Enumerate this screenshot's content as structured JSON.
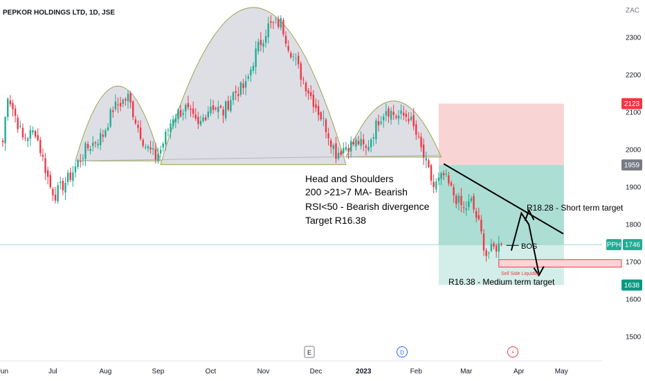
{
  "chart_data": {
    "type": "candlestick",
    "title": "PEPKOR HOLDINGS LTD, 1D, JSE",
    "currency": "ZAC",
    "ylim": [
      1440,
      2360
    ],
    "y_ticks": [
      1500,
      1600,
      1700,
      1800,
      1900,
      2000,
      2100,
      2200,
      2300
    ],
    "x_ticks": [
      {
        "label": "Jun",
        "x": 0
      },
      {
        "label": "Jul",
        "x": 20
      },
      {
        "label": "Aug",
        "x": 41
      },
      {
        "label": "Sep",
        "x": 62
      },
      {
        "label": "Oct",
        "x": 83
      },
      {
        "label": "Nov",
        "x": 104
      },
      {
        "label": "Dec",
        "x": 125
      },
      {
        "label": "2023",
        "x": 144,
        "bold": true
      },
      {
        "label": "Feb",
        "x": 165
      },
      {
        "label": "Mar",
        "x": 185
      },
      {
        "label": "Apr",
        "x": 206
      },
      {
        "label": "May",
        "x": 223
      }
    ],
    "anchors": [
      [
        0,
        2020
      ],
      [
        2,
        2150
      ],
      [
        8,
        2030
      ],
      [
        13,
        2050
      ],
      [
        19,
        1900
      ],
      [
        21,
        1880
      ],
      [
        27,
        1930
      ],
      [
        33,
        2000
      ],
      [
        40,
        2040
      ],
      [
        44,
        2110
      ],
      [
        50,
        2140
      ],
      [
        54,
        2060
      ],
      [
        57,
        2010
      ],
      [
        61,
        1980
      ],
      [
        63,
        2000
      ],
      [
        68,
        2090
      ],
      [
        73,
        2110
      ],
      [
        78,
        2060
      ],
      [
        83,
        2120
      ],
      [
        88,
        2100
      ],
      [
        92,
        2150
      ],
      [
        97,
        2170
      ],
      [
        101,
        2260
      ],
      [
        106,
        2330
      ],
      [
        111,
        2340
      ],
      [
        114,
        2280
      ],
      [
        119,
        2200
      ],
      [
        124,
        2130
      ],
      [
        129,
        2060
      ],
      [
        133,
        1990
      ],
      [
        137,
        2010
      ],
      [
        142,
        2020
      ],
      [
        145,
        2000
      ],
      [
        150,
        2080
      ],
      [
        153,
        2110
      ],
      [
        157,
        2090
      ],
      [
        162,
        2090
      ],
      [
        165,
        2040
      ],
      [
        169,
        1960
      ],
      [
        172,
        1900
      ],
      [
        176,
        1930
      ],
      [
        180,
        1880
      ],
      [
        184,
        1840
      ],
      [
        187,
        1860
      ],
      [
        190,
        1800
      ],
      [
        193,
        1720
      ],
      [
        197,
        1740
      ],
      [
        199,
        1746
      ]
    ],
    "last_price": {
      "symbol": "PPH",
      "value": 1746
    },
    "price_tags": [
      {
        "value": 2123,
        "label": "2123",
        "color": "#f23645"
      },
      {
        "value": 1959,
        "label": "1959",
        "color": "#787b86"
      },
      {
        "value": 1638,
        "label": "1638",
        "color": "#089981"
      }
    ],
    "colors": {
      "up": "#22ab94",
      "down": "#f23645",
      "stop": "#f7c9c9",
      "target": "#a8dcd1",
      "target2": "#d1ede8"
    }
  },
  "annotations": {
    "pattern_lines": [
      "Head and Shoulders",
      "200 >21>7 MA- Bearish",
      "RSI<50 - Bearish divergence",
      "Target R16.38"
    ],
    "short_target": "R18.28 - Short term target",
    "medium_target": "R16.38 - Medium term target",
    "bos": "BOS",
    "liquidity": "Sell Side Liquidity"
  },
  "events": [
    {
      "icon": "earnings-icon",
      "glyph": "E"
    },
    {
      "icon": "dividend-icon",
      "glyph": "D"
    },
    {
      "icon": "split-icon",
      "glyph": "⚡"
    }
  ]
}
